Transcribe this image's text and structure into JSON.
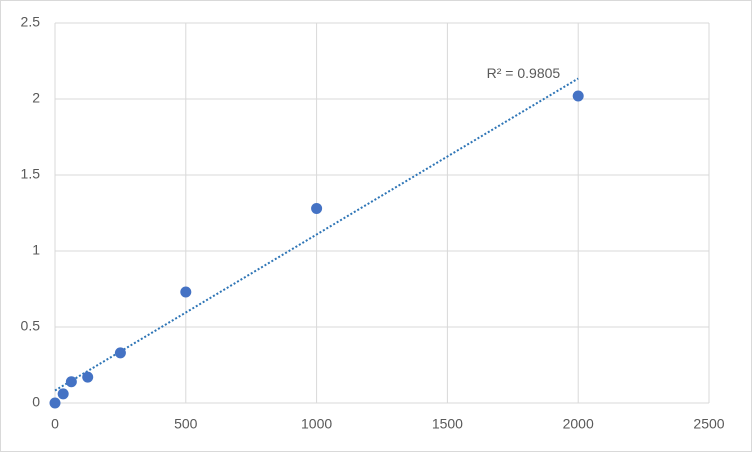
{
  "chart_data": {
    "type": "scatter",
    "x": [
      0,
      31.25,
      62.5,
      125,
      250,
      500,
      1000,
      2000
    ],
    "values": [
      0,
      0.06,
      0.14,
      0.17,
      0.33,
      0.73,
      1.28,
      2.02
    ],
    "color": "#4472c4",
    "trendline": "linear",
    "trendline_color": "#2e75b6",
    "annotation": "R² = 0.9805",
    "xlim": [
      0,
      2500
    ],
    "xticks": [
      0,
      500,
      1000,
      1500,
      2000,
      2500
    ],
    "ylim": [
      0,
      2.5
    ],
    "yticks": [
      0,
      0.5,
      1,
      1.5,
      2,
      2.5
    ],
    "grid": true
  }
}
